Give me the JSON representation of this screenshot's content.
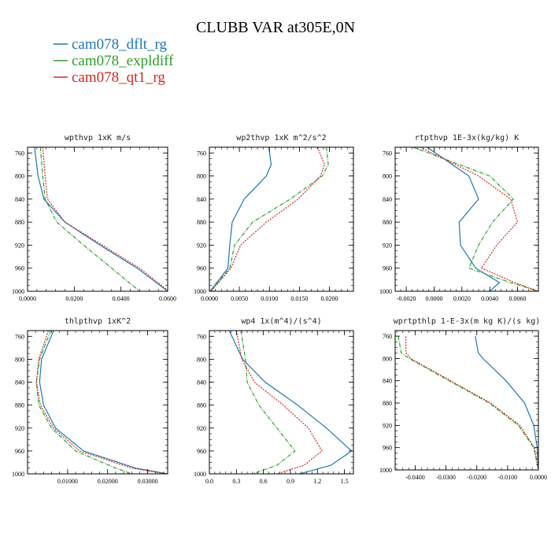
{
  "figure": {
    "title": "CLUBB VAR at305E,0N",
    "legend": [
      {
        "label": "cam078_dflt_rg",
        "color": "#1f77b4",
        "dash": "solid"
      },
      {
        "label": "cam078_expldiff",
        "color": "#2ca02c",
        "dash": "dashdot"
      },
      {
        "label": "cam078_qt1_rg",
        "color": "#d62728",
        "dash": "dotted"
      }
    ]
  },
  "chart_data": [
    {
      "type": "line",
      "title": "wpthvp  1xK m/s",
      "xlabel": "",
      "ylabel": "",
      "xlim": [
        0,
        0.06
      ],
      "ylim": [
        1000,
        750
      ],
      "xticks": [
        0,
        0.02,
        0.04,
        0.06
      ],
      "xtick_labels": [
        "0.0000",
        "0.0200",
        "0.0400",
        "0.0600"
      ],
      "yticks": [
        760,
        800,
        840,
        880,
        920,
        960,
        1000
      ],
      "y": [
        750,
        800,
        840,
        880,
        920,
        960,
        1000
      ],
      "series": [
        {
          "name": "cam078_dflt_rg",
          "x": [
            0.003,
            0.0045,
            0.007,
            0.016,
            0.031,
            0.047,
            0.06
          ]
        },
        {
          "name": "cam078_expldiff",
          "x": [
            0.0055,
            0.0065,
            0.0075,
            0.0125,
            0.024,
            0.036,
            0.048
          ]
        },
        {
          "name": "cam078_qt1_rg",
          "x": [
            0.0065,
            0.0075,
            0.0085,
            0.016,
            0.032,
            0.048,
            0.0605
          ]
        }
      ]
    },
    {
      "type": "line",
      "title": "wp2thvp  1xK m^2/s^2",
      "xlabel": "",
      "ylabel": "",
      "xlim": [
        0,
        0.024
      ],
      "ylim": [
        1000,
        750
      ],
      "xticks": [
        0,
        0.005,
        0.01,
        0.015,
        0.02
      ],
      "xtick_labels": [
        "0.0000",
        "0.0050",
        "0.0100",
        "0.0150",
        "0.0200"
      ],
      "yticks": [
        760,
        800,
        840,
        880,
        920,
        960,
        1000
      ],
      "y": [
        750,
        780,
        800,
        840,
        880,
        920,
        960,
        1000
      ],
      "series": [
        {
          "name": "cam078_dflt_rg",
          "x": [
            0.0099,
            0.0103,
            0.0095,
            0.0058,
            0.0038,
            0.0034,
            0.0031,
            0.0001
          ]
        },
        {
          "name": "cam078_expldiff",
          "x": [
            0.0195,
            0.0198,
            0.0188,
            0.0135,
            0.0072,
            0.0042,
            0.0034,
            0.0002
          ]
        },
        {
          "name": "cam078_qt1_rg",
          "x": [
            0.018,
            0.0192,
            0.0185,
            0.0148,
            0.0095,
            0.0052,
            0.0036,
            0.0003
          ]
        }
      ]
    },
    {
      "type": "line",
      "title": "rtpthvp  1E-3x(kg/kg) K",
      "xlabel": "",
      "ylabel": "",
      "xlim": [
        -0.0028,
        0.0075
      ],
      "ylim": [
        1000,
        750
      ],
      "xticks": [
        -0.002,
        0,
        0.002,
        0.004,
        0.006
      ],
      "xtick_labels": [
        "-0.0020",
        "0.0000",
        "0.0020",
        "0.0040",
        "0.0060"
      ],
      "yticks": [
        760,
        800,
        840,
        880,
        920,
        960,
        1000
      ],
      "y": [
        750,
        800,
        840,
        880,
        920,
        960,
        985,
        1000
      ],
      "series": [
        {
          "name": "cam078_dflt_rg",
          "x": [
            -0.0005,
            0.0025,
            0.0032,
            0.0018,
            0.0019,
            0.003,
            0.0047,
            0.004
          ]
        },
        {
          "name": "cam078_expldiff",
          "x": [
            -0.0015,
            0.004,
            0.0057,
            0.0042,
            0.0032,
            0.0025,
            0.0055,
            0.0075
          ]
        },
        {
          "name": "cam078_qt1_rg",
          "x": [
            -0.001,
            0.0032,
            0.0055,
            0.006,
            0.0045,
            0.0034,
            0.0058,
            0.0075
          ]
        }
      ]
    },
    {
      "type": "line",
      "title": "thlpthvp  1xK^2",
      "xlabel": "",
      "ylabel": "",
      "xlim": [
        0,
        0.035
      ],
      "ylim": [
        1000,
        750
      ],
      "xticks": [
        0.01,
        0.02,
        0.03
      ],
      "xtick_labels": [
        "0.01000",
        "0.02000",
        "0.03000"
      ],
      "yticks": [
        760,
        800,
        840,
        880,
        920,
        960,
        1000
      ],
      "y": [
        750,
        800,
        840,
        880,
        920,
        960,
        990,
        1000
      ],
      "series": [
        {
          "name": "cam078_dflt_rg",
          "x": [
            0.0065,
            0.0035,
            0.003,
            0.004,
            0.007,
            0.014,
            0.027,
            0.035
          ]
        },
        {
          "name": "cam078_expldiff",
          "x": [
            0.0058,
            0.003,
            0.0022,
            0.0028,
            0.006,
            0.012,
            0.022,
            0.026
          ]
        },
        {
          "name": "cam078_qt1_rg",
          "x": [
            0.0052,
            0.0028,
            0.0022,
            0.0032,
            0.0065,
            0.013,
            0.026,
            0.0345
          ]
        }
      ]
    },
    {
      "type": "line",
      "title": "wp4  1x(m^4)/(s^4)",
      "xlabel": "",
      "ylabel": "",
      "xlim": [
        0,
        1.6
      ],
      "ylim": [
        1000,
        750
      ],
      "xticks": [
        0,
        0.3,
        0.6,
        0.9,
        1.2,
        1.5
      ],
      "xtick_labels": [
        "0.0",
        "0.3",
        "0.6",
        "0.9",
        "1.2",
        "1.5"
      ],
      "yticks": [
        760,
        800,
        840,
        880,
        920,
        960,
        1000
      ],
      "y": [
        750,
        800,
        840,
        880,
        920,
        960,
        985,
        1000
      ],
      "series": [
        {
          "name": "cam078_dflt_rg",
          "x": [
            0.22,
            0.37,
            0.62,
            0.98,
            1.3,
            1.58,
            1.35,
            1.0
          ]
        },
        {
          "name": "cam078_expldiff",
          "x": [
            0.35,
            0.4,
            0.42,
            0.55,
            0.75,
            0.95,
            0.75,
            0.48
          ]
        },
        {
          "name": "cam078_qt1_rg",
          "x": [
            0.3,
            0.36,
            0.5,
            0.82,
            1.1,
            1.25,
            1.05,
            0.75
          ]
        }
      ]
    },
    {
      "type": "line",
      "title": "wprtpthlp  1-E-3x(m kg K)/(s kg)",
      "xlabel": "",
      "ylabel": "",
      "xlim": [
        -0.0465,
        0
      ],
      "ylim": [
        1000,
        750
      ],
      "xticks": [
        -0.04,
        -0.03,
        -0.02,
        -0.01,
        0
      ],
      "xtick_labels": [
        "-0.0400",
        "-0.0300",
        "-0.0200",
        "-0.0100",
        "0.0000"
      ],
      "yticks": [
        760,
        800,
        840,
        880,
        920,
        960,
        1000
      ],
      "y": [
        760,
        790,
        800,
        840,
        880,
        920,
        960,
        1000
      ],
      "series": [
        {
          "name": "cam078_dflt_rg",
          "x": [
            -0.0205,
            -0.0195,
            -0.018,
            -0.0105,
            -0.0045,
            -0.0015,
            -0.0004,
            0.0
          ]
        },
        {
          "name": "cam078_expldiff",
          "x": [
            -0.0455,
            -0.0445,
            -0.042,
            -0.029,
            -0.016,
            -0.0065,
            -0.0015,
            0.0
          ]
        },
        {
          "name": "cam078_qt1_rg",
          "x": [
            -0.043,
            -0.043,
            -0.0415,
            -0.0285,
            -0.0155,
            -0.006,
            -0.0013,
            0.0
          ]
        }
      ]
    }
  ]
}
